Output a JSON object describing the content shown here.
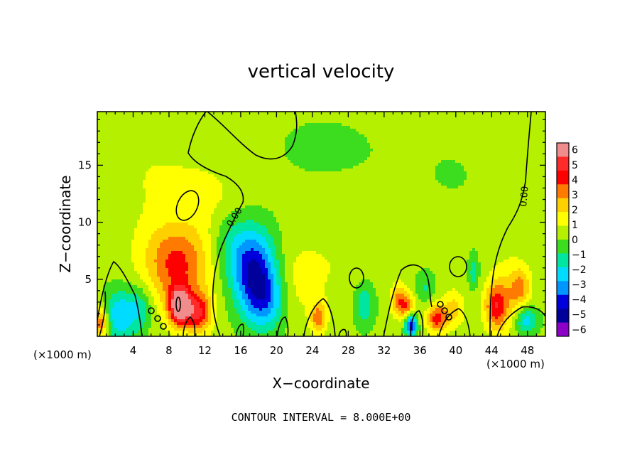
{
  "chart_data": {
    "type": "heatmap",
    "title": "vertical velocity",
    "xlabel": "X−coordinate",
    "ylabel": "Z−coordinate",
    "x_units_label": "(×1000 m)",
    "x_ticks": [
      4,
      8,
      12,
      16,
      20,
      24,
      28,
      32,
      36,
      40,
      44,
      48
    ],
    "x_tick_labels": [
      "4",
      "8",
      "12",
      "16",
      "20",
      "24",
      "28",
      "32",
      "36",
      "40",
      "44",
      "48"
    ],
    "xlim": [
      0,
      50
    ],
    "y_ticks": [
      5,
      10,
      15
    ],
    "y_tick_labels": [
      "5",
      "10",
      "15"
    ],
    "ylim": [
      0,
      19.7
    ],
    "colorbar": {
      "levels": [
        6,
        5,
        4,
        3,
        2,
        1,
        0,
        -1,
        -2,
        -3,
        -4,
        -5,
        -6
      ],
      "labels": [
        "6",
        "5",
        "4",
        "3",
        "2",
        "1",
        "0",
        "−1",
        "−2",
        "−3",
        "−4",
        "−5",
        "−6"
      ],
      "colors": [
        "#f08c8c",
        "#ff2a2a",
        "#ff0000",
        "#ff7a00",
        "#ffd000",
        "#ffff00",
        "#b4f000",
        "#3cdc1e",
        "#00e6a0",
        "#00dcff",
        "#0096ff",
        "#0000dc",
        "#00009b",
        "#8c00c8"
      ]
    },
    "background_value": 0.3,
    "features": [
      {
        "x": 9.0,
        "z": 5.5,
        "value": 3.2,
        "sx": 2.6,
        "sz": 2.6
      },
      {
        "x": 9.2,
        "z": 2.6,
        "value": 6.8,
        "sx": 0.8,
        "sz": 1.1
      },
      {
        "x": 11.3,
        "z": 2.0,
        "value": 4.2,
        "sx": 1.0,
        "sz": 1.2
      },
      {
        "x": 8.5,
        "z": 7.6,
        "value": 1.2,
        "sx": 2.5,
        "sz": 1.8
      },
      {
        "x": 0.4,
        "z": 1.2,
        "value": 3.8,
        "sx": 0.6,
        "sz": 1.0
      },
      {
        "x": 2.5,
        "z": 1.8,
        "value": -3.2,
        "sx": 1.3,
        "sz": 1.6
      },
      {
        "x": 4.8,
        "z": 2.5,
        "value": -2.0,
        "sx": 1.0,
        "sz": 1.4
      },
      {
        "x": 17.6,
        "z": 5.6,
        "value": -5.2,
        "sx": 1.7,
        "sz": 2.6
      },
      {
        "x": 19.0,
        "z": 3.0,
        "value": -2.6,
        "sx": 1.6,
        "sz": 1.8
      },
      {
        "x": 15.0,
        "z": 8.0,
        "value": -1.6,
        "sx": 1.6,
        "sz": 2.4
      },
      {
        "x": 13.2,
        "z": 12.0,
        "value": 0.8,
        "sx": 3.0,
        "sz": 2.0
      },
      {
        "x": 24.7,
        "z": 1.6,
        "value": 3.4,
        "sx": 0.6,
        "sz": 0.9
      },
      {
        "x": 29.8,
        "z": 2.8,
        "value": -2.2,
        "sx": 0.8,
        "sz": 1.4
      },
      {
        "x": 33.6,
        "z": 3.2,
        "value": 3.0,
        "sx": 0.6,
        "sz": 1.0
      },
      {
        "x": 35.0,
        "z": 1.0,
        "value": -5.6,
        "sx": 0.45,
        "sz": 0.7
      },
      {
        "x": 34.6,
        "z": 2.6,
        "value": 3.2,
        "sx": 0.6,
        "sz": 0.8
      },
      {
        "x": 37.9,
        "z": 1.6,
        "value": 4.2,
        "sx": 0.8,
        "sz": 0.9
      },
      {
        "x": 39.8,
        "z": 2.4,
        "value": 2.0,
        "sx": 0.8,
        "sz": 1.2
      },
      {
        "x": 36.6,
        "z": 4.2,
        "value": -1.4,
        "sx": 0.7,
        "sz": 1.0
      },
      {
        "x": 42.0,
        "z": 5.6,
        "value": -1.8,
        "sx": 0.4,
        "sz": 1.0
      },
      {
        "x": 44.5,
        "z": 2.6,
        "value": 3.8,
        "sx": 0.9,
        "sz": 1.4
      },
      {
        "x": 47.2,
        "z": 4.3,
        "value": 2.4,
        "sx": 0.8,
        "sz": 1.2
      },
      {
        "x": 47.8,
        "z": 1.4,
        "value": -3.0,
        "sx": 0.9,
        "sz": 0.9
      },
      {
        "x": 45.8,
        "z": 3.6,
        "value": 1.5,
        "sx": 1.5,
        "sz": 2.5
      },
      {
        "x": 22.0,
        "z": 4.5,
        "value": 1.0,
        "sx": 2.0,
        "sz": 2.5
      },
      {
        "x": 26.5,
        "z": 6.5,
        "value": 0.6,
        "sx": 3.0,
        "sz": 3.0
      },
      {
        "x": 6.5,
        "z": 14.0,
        "value": 0.7,
        "sx": 5.0,
        "sz": 4.0
      },
      {
        "x": 25.0,
        "z": 16.5,
        "value": -0.4,
        "sx": 6.0,
        "sz": 3.0
      },
      {
        "x": 40.0,
        "z": 14.0,
        "value": -0.3,
        "sx": 5.0,
        "sz": 4.0
      }
    ],
    "contour_label": "0.00",
    "annotation": "CONTOUR INTERVAL = 8.000E+00"
  }
}
